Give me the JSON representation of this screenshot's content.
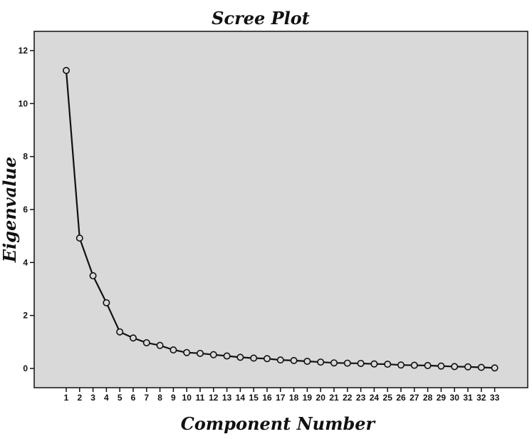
{
  "chart_data": {
    "type": "line",
    "title": "Scree Plot",
    "xlabel": "Component Number",
    "ylabel": "Eigenvalue",
    "x": [
      1,
      2,
      3,
      4,
      5,
      6,
      7,
      8,
      9,
      10,
      11,
      12,
      13,
      14,
      15,
      16,
      17,
      18,
      19,
      20,
      21,
      22,
      23,
      24,
      25,
      26,
      27,
      28,
      29,
      30,
      31,
      32,
      33
    ],
    "series": [
      {
        "values": [
          11.25,
          4.92,
          3.5,
          2.48,
          1.38,
          1.15,
          0.97,
          0.87,
          0.7,
          0.6,
          0.57,
          0.52,
          0.47,
          0.42,
          0.39,
          0.37,
          0.32,
          0.3,
          0.27,
          0.24,
          0.21,
          0.2,
          0.19,
          0.17,
          0.16,
          0.13,
          0.12,
          0.11,
          0.09,
          0.07,
          0.06,
          0.04,
          0.02
        ]
      }
    ],
    "ylim": [
      0,
      12
    ],
    "yticks": [
      0,
      2,
      4,
      6,
      8,
      10,
      12
    ],
    "grid": false,
    "legend": "none",
    "colors": {
      "plot_background": "#d9d9d9",
      "line": "#111111",
      "axis": "#111111"
    }
  }
}
